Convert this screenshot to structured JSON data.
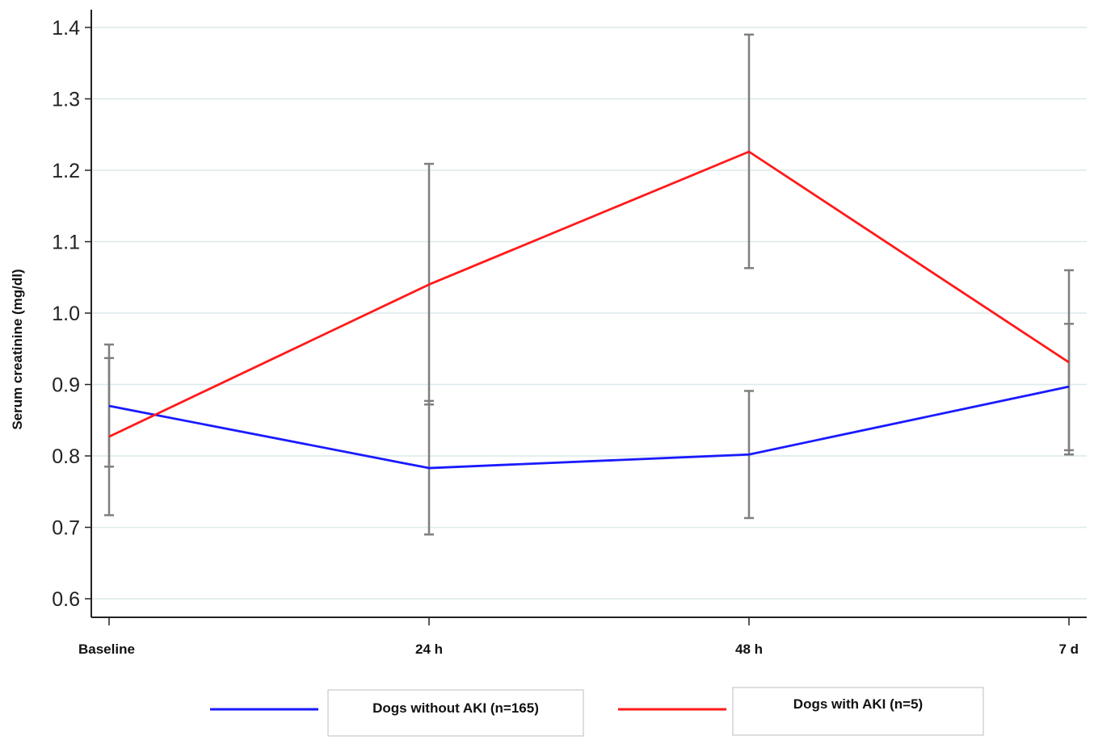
{
  "chart_data": {
    "type": "line",
    "ylabel": "Serum creatinine (mg/dl)",
    "xlabel": "",
    "categories": [
      "Baseline",
      "24 h",
      "48 h",
      "7 d"
    ],
    "ylim": [
      0.58,
      1.42
    ],
    "yticks": [
      0.6,
      0.7,
      0.8,
      0.9,
      1.0,
      1.1,
      1.2,
      1.3,
      1.4
    ],
    "ytick_labels": [
      "0.6",
      "0.7",
      "0.8",
      "0.9",
      "1.0",
      "1.1",
      "1.2",
      "1.3",
      "1.4"
    ],
    "grid": "horizontal",
    "legend_position": "bottom",
    "series": [
      {
        "name": "Dogs without AKI (n=165)",
        "color": "#1a1aff",
        "values": [
          0.87,
          0.783,
          0.802,
          0.897
        ],
        "err_low": [
          0.785,
          0.69,
          0.713,
          0.808
        ],
        "err_high": [
          0.956,
          0.877,
          0.891,
          0.985
        ]
      },
      {
        "name": "Dogs with AKI (n=5)",
        "color": "#ff1a1a",
        "values": [
          0.827,
          1.04,
          1.226,
          0.931
        ],
        "err_low": [
          0.717,
          0.872,
          1.063,
          0.802
        ],
        "err_high": [
          0.937,
          1.209,
          1.39,
          1.06
        ]
      }
    ],
    "errorbar_color": "#7f7f7f",
    "grid_color": "#dce9ea",
    "axis_color": "#222222"
  }
}
